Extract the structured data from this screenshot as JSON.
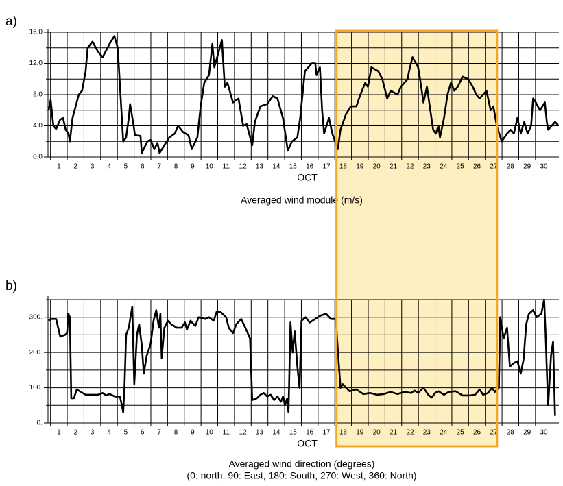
{
  "highlight": {
    "x": [
      17.6,
      27.2
    ],
    "color": "#f5a623",
    "fill": "#fdefc0"
  },
  "chart_data": [
    {
      "type": "line",
      "label": "a)",
      "title": "Averaged wind module (m/s)",
      "xlabel": "OCT",
      "color": "#000000",
      "grid": true,
      "xlim": [
        0.35,
        30.9
      ],
      "xticks": [
        1,
        2,
        3,
        4,
        5,
        6,
        7,
        8,
        9,
        10,
        11,
        12,
        13,
        14,
        15,
        16,
        17,
        18,
        19,
        20,
        21,
        22,
        23,
        24,
        25,
        26,
        27,
        28,
        29,
        30
      ],
      "ylim": [
        0,
        16
      ],
      "yticks": [
        {
          "value": 0,
          "label": "0.0"
        },
        {
          "value": 4,
          "label": "4.0"
        },
        {
          "value": 8,
          "label": "8.0"
        },
        {
          "value": 12,
          "label": "12.0"
        },
        {
          "value": 16,
          "label": "16.0"
        }
      ],
      "yminorticks": [
        2,
        6,
        10,
        14
      ],
      "x": [
        0.39,
        0.51,
        0.67,
        0.84,
        1.08,
        1.25,
        1.41,
        1.57,
        1.66,
        1.82,
        2.19,
        2.39,
        2.6,
        2.72,
        3.01,
        3.34,
        3.62,
        4.03,
        4.32,
        4.52,
        4.85,
        5.02,
        5.18,
        5.26,
        5.47,
        5.55,
        5.88,
        5.96,
        6.29,
        6.49,
        6.7,
        6.9,
        7.02,
        7.31,
        7.6,
        7.93,
        8.13,
        8.42,
        8.75,
        8.95,
        9.28,
        9.48,
        9.69,
        9.98,
        10.18,
        10.3,
        10.75,
        10.92,
        11.08,
        11.41,
        11.74,
        12.02,
        12.23,
        12.56,
        12.72,
        13.05,
        13.46,
        13.79,
        14.07,
        14.4,
        14.69,
        14.93,
        15.26,
        15.43,
        15.71,
        16.12,
        16.33,
        16.41,
        16.61,
        16.74,
        16.86,
        17.15,
        17.35,
        17.68,
        17.84,
        18.17,
        18.46,
        18.79,
        19.03,
        19.32,
        19.48,
        19.69,
        20.1,
        20.34,
        20.63,
        20.84,
        21.25,
        21.45,
        21.86,
        21.94,
        22.15,
        22.48,
        22.6,
        22.8,
        23.01,
        23.21,
        23.38,
        23.54,
        23.7,
        23.79,
        24.03,
        24.24,
        24.44,
        24.65,
        24.85,
        25.14,
        25.47,
        25.75,
        25.96,
        26.16,
        26.57,
        26.82,
        26.98,
        27.19,
        27.48,
        27.8,
        28.01,
        28.21,
        28.42,
        28.62,
        28.83,
        29.03,
        29.24,
        29.36,
        29.52,
        29.77,
        30.06,
        30.18,
        30.26,
        30.47,
        30.67,
        30.88
      ],
      "values": [
        6,
        7.3,
        4,
        3.6,
        4.8,
        5,
        3.5,
        3,
        2,
        5,
        8,
        8.5,
        11,
        14,
        14.8,
        13.5,
        12.8,
        14.5,
        15.5,
        14,
        2,
        2.5,
        5,
        6.8,
        4,
        2.8,
        2.7,
        0.5,
        2,
        2.2,
        1,
        1.8,
        0.5,
        1.5,
        2.5,
        3,
        4,
        3.2,
        2.8,
        1,
        2.5,
        6.5,
        9.5,
        10.5,
        14.5,
        11.5,
        15,
        9,
        9.5,
        7,
        7.5,
        4,
        4.2,
        1.5,
        4.5,
        6.5,
        6.8,
        7.8,
        7.5,
        5,
        0.8,
        2,
        2.5,
        5,
        11,
        12,
        12,
        10.5,
        11.5,
        6,
        3,
        5,
        3,
        1,
        3.5,
        5.5,
        6.5,
        6.5,
        8,
        9.5,
        9,
        11.5,
        11,
        10,
        7.5,
        8.5,
        8,
        9,
        10,
        11,
        12.8,
        11.5,
        10,
        7,
        9,
        6,
        3.5,
        3,
        4,
        2.5,
        5,
        8,
        9.5,
        8.5,
        9,
        10.3,
        10,
        9,
        8,
        7.5,
        8.5,
        6,
        6.5,
        4,
        2,
        3,
        3.5,
        3,
        5,
        3,
        4.5,
        3,
        4,
        7.5,
        7,
        6,
        7,
        4.5,
        3.5,
        4,
        4.5,
        4
      ]
    },
    {
      "type": "line",
      "label": "b)",
      "title": "Averaged wind direction (degrees)",
      "subtitle": "(0: north, 90: East, 180: South, 270: West, 360: North)",
      "xlabel": "OCT",
      "color": "#000000",
      "grid": true,
      "xlim": [
        0.35,
        30.9
      ],
      "xticks": [
        1,
        2,
        3,
        4,
        5,
        6,
        7,
        8,
        9,
        10,
        11,
        12,
        13,
        14,
        15,
        16,
        17,
        18,
        19,
        20,
        21,
        22,
        23,
        24,
        25,
        26,
        27,
        28,
        29,
        30
      ],
      "ylim": [
        0,
        350
      ],
      "yticks": [
        {
          "value": 0,
          "label": "0."
        },
        {
          "value": 100,
          "label": "100."
        },
        {
          "value": 200,
          "label": "200."
        },
        {
          "value": 300,
          "label": "300."
        }
      ],
      "yminorticks": [
        50,
        150,
        250,
        350
      ],
      "x": [
        0.39,
        0.51,
        0.84,
        1.08,
        1.37,
        1.49,
        1.57,
        1.66,
        1.74,
        1.9,
        2.07,
        2.31,
        2.6,
        3.01,
        3.34,
        3.62,
        3.83,
        4.03,
        4.36,
        4.65,
        4.77,
        4.85,
        4.93,
        5.02,
        5.18,
        5.39,
        5.51,
        5.67,
        5.8,
        5.96,
        6.08,
        6.25,
        6.49,
        6.66,
        6.82,
        6.98,
        7.07,
        7.15,
        7.31,
        7.52,
        7.72,
        8.05,
        8.34,
        8.54,
        8.66,
        8.87,
        9.16,
        9.36,
        9.77,
        9.98,
        10.26,
        10.43,
        10.67,
        11.0,
        11.16,
        11.41,
        11.61,
        11.9,
        12.15,
        12.43,
        12.56,
        12.84,
        13.05,
        13.25,
        13.46,
        13.66,
        13.87,
        14.07,
        14.28,
        14.4,
        14.52,
        14.65,
        14.73,
        14.85,
        14.98,
        15.1,
        15.26,
        15.39,
        15.51,
        15.75,
        16.0,
        16.33,
        16.66,
        16.98,
        17.27,
        17.56,
        17.72,
        17.84,
        17.97,
        18.38,
        18.79,
        19.2,
        19.61,
        20.02,
        20.43,
        20.84,
        21.25,
        21.66,
        22.07,
        22.27,
        22.48,
        22.8,
        23.09,
        23.3,
        23.5,
        23.7,
        24.03,
        24.31,
        24.73,
        25.14,
        25.55,
        25.89,
        26.16,
        26.37,
        26.66,
        26.9,
        27.07,
        27.31,
        27.39,
        27.6,
        27.8,
        27.97,
        28.21,
        28.42,
        28.62,
        28.79,
        28.95,
        29.11,
        29.36,
        29.57,
        29.85,
        30.02,
        30.1,
        30.18,
        30.26,
        30.43,
        30.55,
        30.67
      ],
      "values": [
        290,
        295,
        295,
        245,
        250,
        255,
        310,
        300,
        70,
        70,
        95,
        88,
        80,
        80,
        80,
        85,
        78,
        82,
        75,
        75,
        50,
        30,
        110,
        250,
        270,
        330,
        110,
        250,
        280,
        220,
        140,
        190,
        225,
        290,
        320,
        270,
        310,
        185,
        270,
        290,
        280,
        270,
        270,
        285,
        265,
        290,
        275,
        300,
        295,
        300,
        290,
        315,
        315,
        300,
        270,
        255,
        280,
        295,
        270,
        240,
        65,
        70,
        80,
        85,
        75,
        80,
        65,
        75,
        60,
        75,
        50,
        70,
        30,
        285,
        200,
        260,
        160,
        100,
        290,
        300,
        285,
        295,
        305,
        310,
        295,
        295,
        180,
        100,
        110,
        90,
        95,
        82,
        85,
        80,
        82,
        88,
        82,
        88,
        85,
        92,
        85,
        100,
        80,
        72,
        85,
        90,
        80,
        88,
        90,
        78,
        78,
        80,
        95,
        80,
        85,
        100,
        88,
        100,
        300,
        240,
        270,
        160,
        170,
        175,
        140,
        180,
        280,
        310,
        320,
        300,
        310,
        350,
        260,
        150,
        50,
        190,
        230,
        20
      ]
    }
  ]
}
